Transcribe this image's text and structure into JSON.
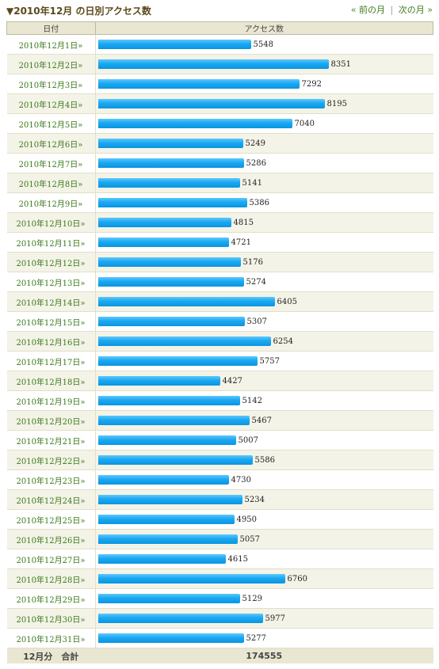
{
  "header": {
    "title": "▼2010年12月 の日別アクセス数",
    "prev_label": "« 前の月",
    "separator": "|",
    "next_label": "次の月 »"
  },
  "table": {
    "col_date": "日付",
    "col_access": "アクセス数",
    "total_label": "12月分　合計",
    "total_value": "174555"
  },
  "chart_data": {
    "type": "bar",
    "categories": [
      "2010年12月1日»",
      "2010年12月2日»",
      "2010年12月3日»",
      "2010年12月4日»",
      "2010年12月5日»",
      "2010年12月6日»",
      "2010年12月7日»",
      "2010年12月8日»",
      "2010年12月9日»",
      "2010年12月10日»",
      "2010年12月11日»",
      "2010年12月12日»",
      "2010年12月13日»",
      "2010年12月14日»",
      "2010年12月15日»",
      "2010年12月16日»",
      "2010年12月17日»",
      "2010年12月18日»",
      "2010年12月19日»",
      "2010年12月20日»",
      "2010年12月21日»",
      "2010年12月22日»",
      "2010年12月23日»",
      "2010年12月24日»",
      "2010年12月25日»",
      "2010年12月26日»",
      "2010年12月27日»",
      "2010年12月28日»",
      "2010年12月29日»",
      "2010年12月30日»",
      "2010年12月31日»"
    ],
    "values": [
      5548,
      8351,
      7292,
      8195,
      7040,
      5249,
      5286,
      5141,
      5386,
      4815,
      4721,
      5176,
      5274,
      6405,
      5307,
      6254,
      5757,
      4427,
      5142,
      5467,
      5007,
      5586,
      4730,
      5234,
      4950,
      5057,
      4615,
      6760,
      5129,
      5977,
      5277
    ],
    "bar_color": "#1ba8f2"
  }
}
